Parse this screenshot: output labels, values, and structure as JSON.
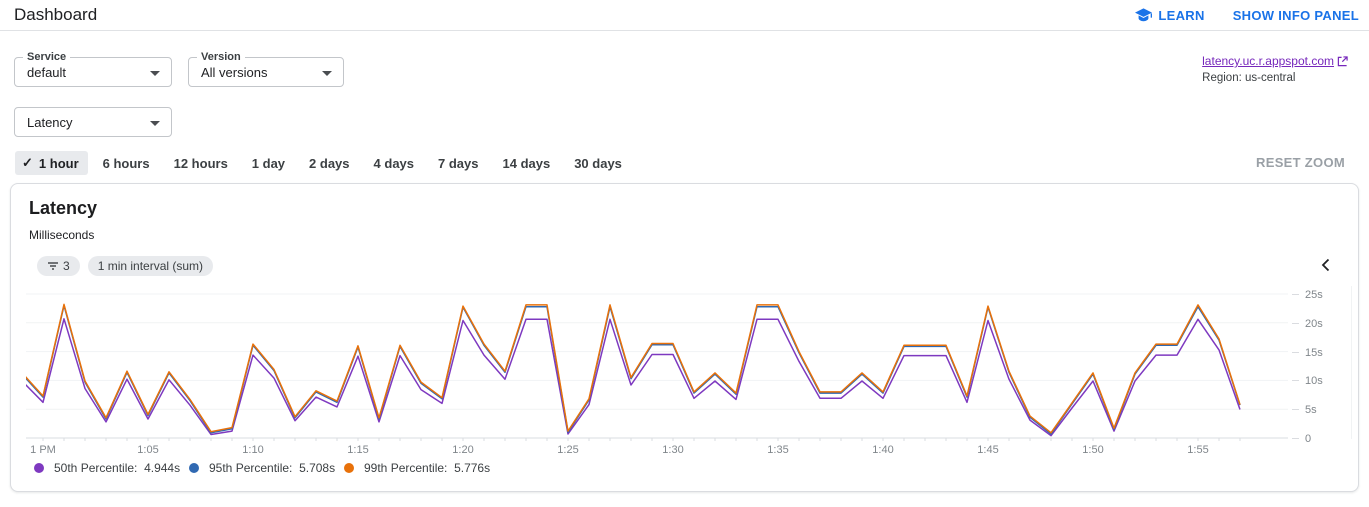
{
  "header": {
    "title": "Dashboard",
    "learn_label": "LEARN",
    "show_info_panel_label": "SHOW INFO PANEL"
  },
  "filters": {
    "service": {
      "label": "Service",
      "value": "default"
    },
    "version": {
      "label": "Version",
      "value": "All versions"
    },
    "metric": {
      "value": "Latency"
    },
    "app_link_text": "latency.uc.r.appspot.com",
    "region": "Region: us-central"
  },
  "time_ranges": {
    "check_glyph": "✓",
    "selected": "1 hour",
    "options": [
      "1 hour",
      "6 hours",
      "12 hours",
      "1 day",
      "2 days",
      "4 days",
      "7 days",
      "14 days",
      "30 days"
    ],
    "reset_zoom_label": "RESET ZOOM"
  },
  "chart_card": {
    "title": "Latency",
    "unit": "Milliseconds",
    "filter_chip_count": "3",
    "interval_chip": "1 min interval (sum)"
  },
  "chart_data": {
    "type": "line",
    "title": "Latency",
    "ylabel": "Milliseconds",
    "ylim": [
      0,
      25
    ],
    "grid": true,
    "legend_position": "bottom",
    "x_start": "12:59 PM",
    "x_interval_minutes": 1,
    "x_tick_labels": [
      "1 PM",
      "1:05",
      "1:10",
      "1:15",
      "1:20",
      "1:25",
      "1:30",
      "1:35",
      "1:40",
      "1:45",
      "1:50",
      "1:55"
    ],
    "y_tick_labels": [
      "25s",
      "20s",
      "15s",
      "10s",
      "5s",
      "0"
    ],
    "series": [
      {
        "name": "50th Percentile",
        "legend_label": "50th Percentile:",
        "current": "4.944s",
        "color": "#7e39c0",
        "values": [
          9.9,
          6.2,
          20.7,
          8.6,
          2.8,
          10.2,
          3.3,
          10.1,
          5.7,
          0.6,
          1.2,
          14.4,
          10.4,
          3.0,
          7.1,
          5.4,
          14.2,
          2.8,
          14.3,
          8.4,
          6.0,
          20.4,
          14.4,
          10.2,
          20.6,
          20.6,
          0.7,
          5.8,
          20.6,
          9.2,
          14.5,
          14.5,
          6.9,
          9.9,
          6.7,
          20.6,
          20.6,
          13.3,
          6.9,
          6.9,
          9.9,
          6.9,
          14.3,
          14.3,
          14.3,
          6.2,
          20.4,
          10.2,
          3.1,
          0.4,
          5.2,
          9.9,
          1.2,
          9.9,
          14.4,
          14.4,
          20.6,
          15.3,
          4.944
        ]
      },
      {
        "name": "95th Percentile",
        "legend_label": "95th Percentile:",
        "current": "5.708s",
        "color": "#3069b2",
        "values": [
          11.1,
          7.1,
          23.0,
          9.7,
          3.3,
          11.4,
          3.9,
          11.3,
          6.5,
          0.9,
          1.6,
          16.1,
          11.7,
          3.5,
          8.0,
          6.2,
          15.8,
          3.3,
          15.9,
          9.5,
          6.8,
          22.7,
          16.1,
          11.4,
          22.8,
          22.8,
          1.0,
          6.6,
          22.8,
          10.3,
          16.2,
          16.2,
          7.8,
          11.1,
          7.6,
          22.8,
          22.8,
          14.8,
          7.8,
          7.8,
          11.1,
          7.8,
          15.9,
          15.9,
          15.9,
          7.1,
          22.7,
          11.4,
          3.6,
          0.7,
          5.9,
          11.1,
          1.5,
          11.1,
          16.1,
          16.1,
          22.8,
          17.0,
          5.708
        ]
      },
      {
        "name": "99th Percentile",
        "legend_label": "99th Percentile:",
        "current": "5.776s",
        "color": "#e8710a",
        "values": [
          11.3,
          7.3,
          23.2,
          9.9,
          3.5,
          11.6,
          4.1,
          11.5,
          6.7,
          1.1,
          1.8,
          16.3,
          11.9,
          3.7,
          8.2,
          6.4,
          16.0,
          3.5,
          16.1,
          9.7,
          7.0,
          22.9,
          16.3,
          11.6,
          23.1,
          23.1,
          1.2,
          6.8,
          23.1,
          10.5,
          16.4,
          16.4,
          8.0,
          11.3,
          7.8,
          23.1,
          23.1,
          15.0,
          8.0,
          8.0,
          11.3,
          8.0,
          16.1,
          16.1,
          16.1,
          7.3,
          22.9,
          11.6,
          3.8,
          0.9,
          6.1,
          11.3,
          1.7,
          11.3,
          16.3,
          16.3,
          23.1,
          17.2,
          5.776
        ]
      }
    ]
  }
}
